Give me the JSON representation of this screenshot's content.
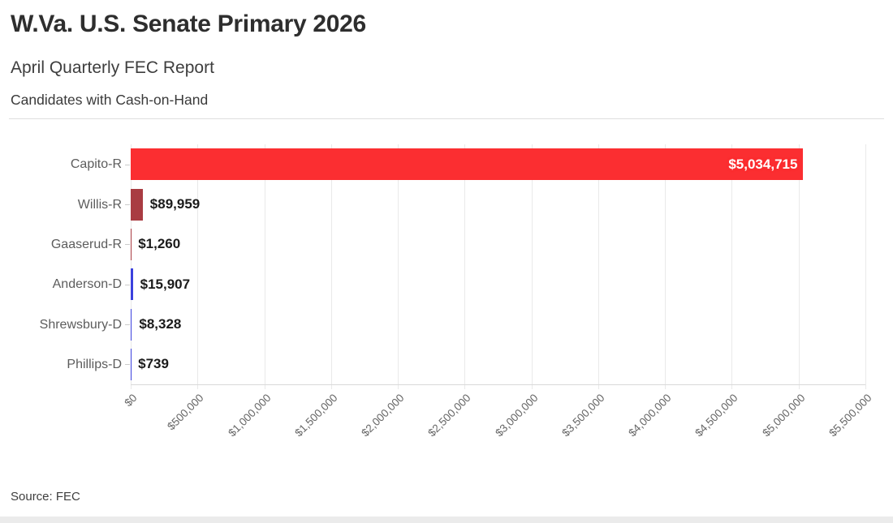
{
  "header": {
    "title": "W.Va. U.S. Senate Primary 2026",
    "subtitle": "April Quarterly FEC Report",
    "description": "Candidates with Cash-on-Hand"
  },
  "footer": {
    "source": "Source: FEC"
  },
  "chart_data": {
    "type": "bar",
    "orientation": "horizontal",
    "title": "W.Va. U.S. Senate Primary 2026",
    "subtitle": "April Quarterly FEC Report",
    "description": "Candidates with Cash-on-Hand",
    "categories": [
      "Capito-R",
      "Willis-R",
      "Gaaserud-R",
      "Anderson-D",
      "Shrewsbury-D",
      "Phillips-D"
    ],
    "values": [
      5034715,
      89959,
      1260,
      15907,
      8328,
      739
    ],
    "value_labels": [
      "$5,034,715",
      "$89,959",
      "$1,260",
      "$15,907",
      "$8,328",
      "$739"
    ],
    "bar_colors": [
      "#fb2e31",
      "#a93c42",
      "#a93c42",
      "#3b41dd",
      "#3b41dd",
      "#3b41dd"
    ],
    "xlim": [
      0,
      5500000
    ],
    "tick_values": [
      0,
      500000,
      1000000,
      1500000,
      2000000,
      2500000,
      3000000,
      3500000,
      4000000,
      4500000,
      5000000,
      5500000
    ],
    "tick_labels": [
      "$0",
      "$500,000",
      "$1,000,000",
      "$1,500,000",
      "$2,000,000",
      "$2,500,000",
      "$3,000,000",
      "$3,500,000",
      "$4,000,000",
      "$4,500,000",
      "$5,000,000",
      "$5,500,000"
    ],
    "grid": true,
    "legend": "none",
    "source": "Source: FEC"
  }
}
